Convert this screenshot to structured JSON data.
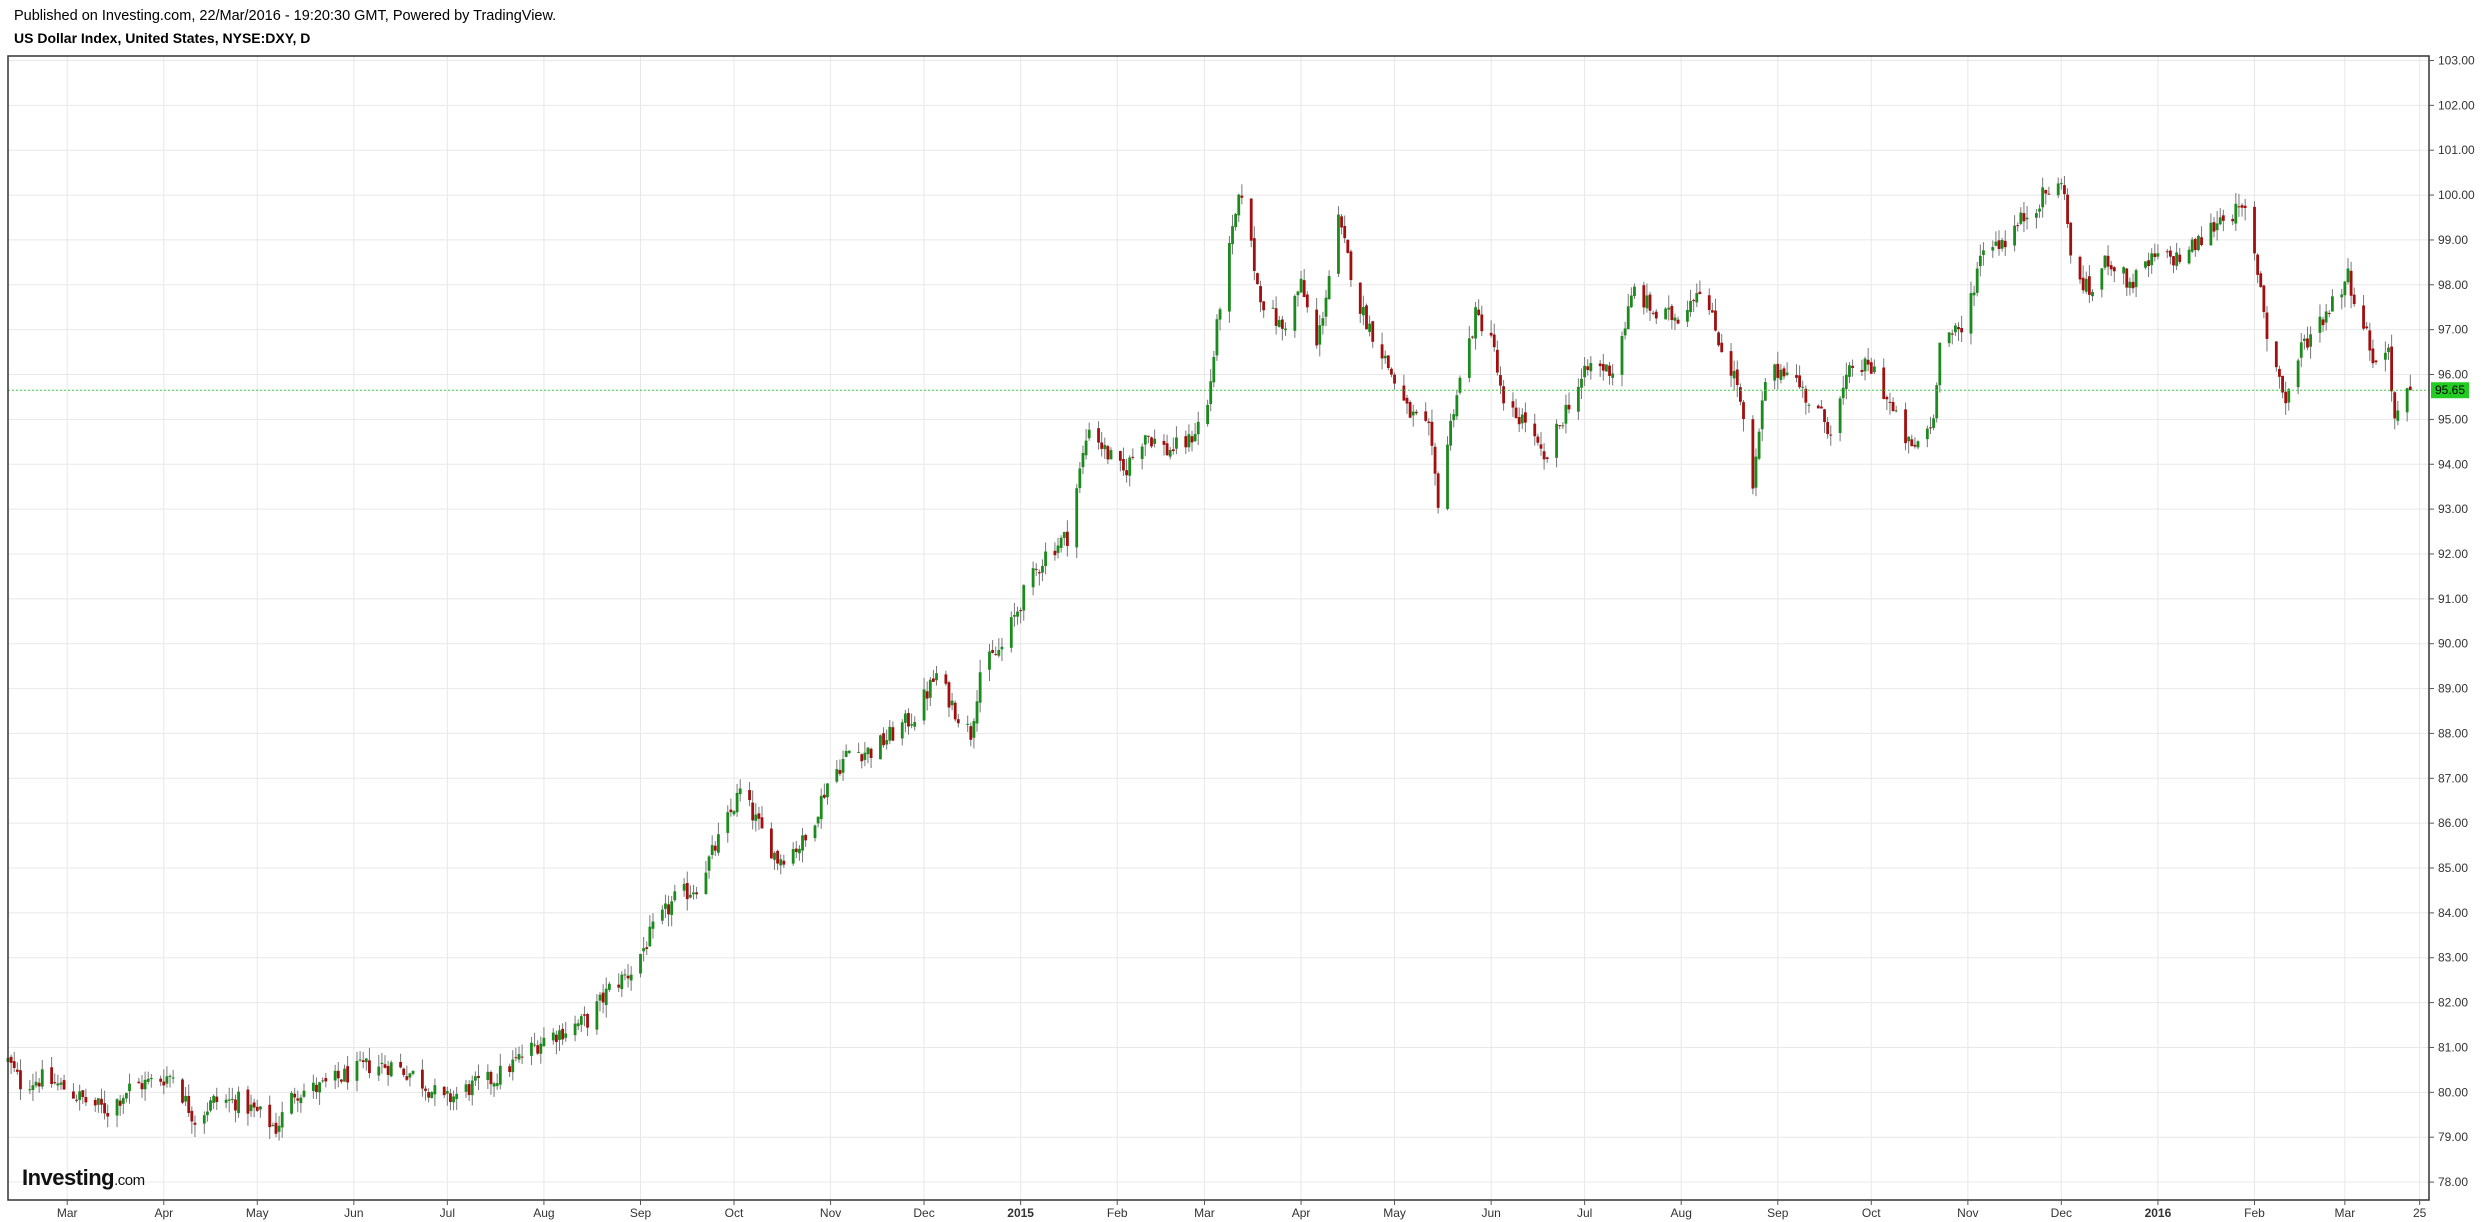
{
  "header": {
    "published": "Published on Investing.com, 22/Mar/2016 - 19:20:30 GMT, Powered by TradingView.",
    "instrument": "US Dollar Index, United States, NYSE:DXY, D"
  },
  "logo": {
    "brand": "Investing",
    "suffix": ".com"
  },
  "colors": {
    "up": "#1c8a1c",
    "down": "#a10f0f",
    "last_line": "#34d334",
    "last_tag": "#22cc22",
    "grid": "#e8e8e8"
  },
  "chart_data": {
    "type": "candlestick",
    "title": "US Dollar Index, United States, NYSE:DXY, D",
    "ylim": [
      77.6,
      103.1
    ],
    "yticks": [
      78,
      79,
      80,
      81,
      82,
      83,
      84,
      85,
      86,
      87,
      88,
      89,
      90,
      91,
      92,
      93,
      94,
      95,
      96,
      97,
      98,
      99,
      100,
      101,
      102,
      103
    ],
    "ytick_labels": [
      "78.00",
      "79.00",
      "80.00",
      "81.00",
      "82.00",
      "83.00",
      "84.00",
      "85.00",
      "86.00",
      "87.00",
      "88.00",
      "89.00",
      "90.00",
      "91.00",
      "92.00",
      "93.00",
      "94.00",
      "95.00",
      "96.00",
      "97.00",
      "98.00",
      "99.00",
      "100.00",
      "101.00",
      "102.00",
      "103.00"
    ],
    "xlim": [
      "2014-02-10",
      "2016-03-28"
    ],
    "xticks": [
      {
        "date": "2014-03-01",
        "label": "Mar"
      },
      {
        "date": "2014-04-01",
        "label": "Apr"
      },
      {
        "date": "2014-05-01",
        "label": "May"
      },
      {
        "date": "2014-06-01",
        "label": "Jun"
      },
      {
        "date": "2014-07-01",
        "label": "Jul"
      },
      {
        "date": "2014-08-01",
        "label": "Aug"
      },
      {
        "date": "2014-09-01",
        "label": "Sep"
      },
      {
        "date": "2014-10-01",
        "label": "Oct"
      },
      {
        "date": "2014-11-01",
        "label": "Nov"
      },
      {
        "date": "2014-12-01",
        "label": "Dec"
      },
      {
        "date": "2015-01-01",
        "label": "2015",
        "bold": true
      },
      {
        "date": "2015-02-01",
        "label": "Feb"
      },
      {
        "date": "2015-03-01",
        "label": "Mar"
      },
      {
        "date": "2015-04-01",
        "label": "Apr"
      },
      {
        "date": "2015-05-01",
        "label": "May"
      },
      {
        "date": "2015-06-01",
        "label": "Jun"
      },
      {
        "date": "2015-07-01",
        "label": "Jul"
      },
      {
        "date": "2015-08-01",
        "label": "Aug"
      },
      {
        "date": "2015-09-01",
        "label": "Sep"
      },
      {
        "date": "2015-10-01",
        "label": "Oct"
      },
      {
        "date": "2015-11-01",
        "label": "Nov"
      },
      {
        "date": "2015-12-01",
        "label": "Dec"
      },
      {
        "date": "2016-01-01",
        "label": "2016",
        "bold": true
      },
      {
        "date": "2016-02-01",
        "label": "Feb"
      },
      {
        "date": "2016-03-01",
        "label": "Mar"
      },
      {
        "date": "2016-03-25",
        "label": "25"
      }
    ],
    "last_price": 95.65,
    "last_price_label": "95.65",
    "closes": [
      {
        "date": "2014-02-10",
        "close": 80.7
      },
      {
        "date": "2014-02-14",
        "close": 80.2
      },
      {
        "date": "2014-02-21",
        "close": 80.3
      },
      {
        "date": "2014-02-28",
        "close": 80.1
      },
      {
        "date": "2014-03-07",
        "close": 79.8
      },
      {
        "date": "2014-03-14",
        "close": 79.6
      },
      {
        "date": "2014-03-21",
        "close": 80.1
      },
      {
        "date": "2014-03-31",
        "close": 80.3
      },
      {
        "date": "2014-04-04",
        "close": 80.4
      },
      {
        "date": "2014-04-08",
        "close": 79.8
      },
      {
        "date": "2014-04-11",
        "close": 79.4
      },
      {
        "date": "2014-04-17",
        "close": 79.8
      },
      {
        "date": "2014-04-25",
        "close": 79.8
      },
      {
        "date": "2014-05-02",
        "close": 79.5
      },
      {
        "date": "2014-05-07",
        "close": 79.2
      },
      {
        "date": "2014-05-13",
        "close": 80.0
      },
      {
        "date": "2014-05-21",
        "close": 80.1
      },
      {
        "date": "2014-05-30",
        "close": 80.4
      },
      {
        "date": "2014-06-06",
        "close": 80.6
      },
      {
        "date": "2014-06-13",
        "close": 80.6
      },
      {
        "date": "2014-06-20",
        "close": 80.4
      },
      {
        "date": "2014-06-30",
        "close": 79.8
      },
      {
        "date": "2014-07-08",
        "close": 80.1
      },
      {
        "date": "2014-07-16",
        "close": 80.3
      },
      {
        "date": "2014-07-25",
        "close": 80.8
      },
      {
        "date": "2014-08-01",
        "close": 81.2
      },
      {
        "date": "2014-08-08",
        "close": 81.4
      },
      {
        "date": "2014-08-15",
        "close": 81.6
      },
      {
        "date": "2014-08-22",
        "close": 82.3
      },
      {
        "date": "2014-08-29",
        "close": 82.7
      },
      {
        "date": "2014-09-05",
        "close": 83.6
      },
      {
        "date": "2014-09-12",
        "close": 84.3
      },
      {
        "date": "2014-09-19",
        "close": 84.6
      },
      {
        "date": "2014-09-26",
        "close": 85.6
      },
      {
        "date": "2014-10-03",
        "close": 86.7
      },
      {
        "date": "2014-10-10",
        "close": 85.8
      },
      {
        "date": "2014-10-15",
        "close": 85.2
      },
      {
        "date": "2014-10-24",
        "close": 85.6
      },
      {
        "date": "2014-10-31",
        "close": 86.9
      },
      {
        "date": "2014-11-07",
        "close": 87.6
      },
      {
        "date": "2014-11-14",
        "close": 87.6
      },
      {
        "date": "2014-11-21",
        "close": 88.0
      },
      {
        "date": "2014-11-28",
        "close": 88.4
      },
      {
        "date": "2014-12-05",
        "close": 89.3
      },
      {
        "date": "2014-12-12",
        "close": 88.4
      },
      {
        "date": "2014-12-16",
        "close": 88.0
      },
      {
        "date": "2014-12-19",
        "close": 89.4
      },
      {
        "date": "2014-12-26",
        "close": 89.9
      },
      {
        "date": "2015-01-02",
        "close": 91.1
      },
      {
        "date": "2015-01-09",
        "close": 92.0
      },
      {
        "date": "2015-01-16",
        "close": 92.4
      },
      {
        "date": "2015-01-23",
        "close": 94.9
      },
      {
        "date": "2015-01-28",
        "close": 94.3
      },
      {
        "date": "2015-02-03",
        "close": 93.8
      },
      {
        "date": "2015-02-10",
        "close": 94.7
      },
      {
        "date": "2015-02-17",
        "close": 94.3
      },
      {
        "date": "2015-02-24",
        "close": 94.5
      },
      {
        "date": "2015-03-02",
        "close": 95.3
      },
      {
        "date": "2015-03-06",
        "close": 97.6
      },
      {
        "date": "2015-03-11",
        "close": 99.5
      },
      {
        "date": "2015-03-13",
        "close": 100.1
      },
      {
        "date": "2015-03-18",
        "close": 98.0
      },
      {
        "date": "2015-03-20",
        "close": 97.6
      },
      {
        "date": "2015-03-26",
        "close": 97.0
      },
      {
        "date": "2015-04-01",
        "close": 98.0
      },
      {
        "date": "2015-04-06",
        "close": 96.6
      },
      {
        "date": "2015-04-13",
        "close": 99.4
      },
      {
        "date": "2015-04-20",
        "close": 97.5
      },
      {
        "date": "2015-04-27",
        "close": 96.5
      },
      {
        "date": "2015-05-05",
        "close": 95.2
      },
      {
        "date": "2015-05-12",
        "close": 94.7
      },
      {
        "date": "2015-05-15",
        "close": 93.2
      },
      {
        "date": "2015-05-20",
        "close": 95.3
      },
      {
        "date": "2015-05-27",
        "close": 97.3
      },
      {
        "date": "2015-06-01",
        "close": 96.9
      },
      {
        "date": "2015-06-05",
        "close": 95.2
      },
      {
        "date": "2015-06-12",
        "close": 95.0
      },
      {
        "date": "2015-06-18",
        "close": 94.0
      },
      {
        "date": "2015-06-26",
        "close": 95.4
      },
      {
        "date": "2015-07-03",
        "close": 96.2
      },
      {
        "date": "2015-07-10",
        "close": 96.1
      },
      {
        "date": "2015-07-17",
        "close": 97.9
      },
      {
        "date": "2015-07-24",
        "close": 97.3
      },
      {
        "date": "2015-07-31",
        "close": 97.3
      },
      {
        "date": "2015-08-07",
        "close": 98.0
      },
      {
        "date": "2015-08-14",
        "close": 96.6
      },
      {
        "date": "2015-08-19",
        "close": 95.8
      },
      {
        "date": "2015-08-24",
        "close": 93.4
      },
      {
        "date": "2015-08-28",
        "close": 95.9
      },
      {
        "date": "2015-09-04",
        "close": 96.2
      },
      {
        "date": "2015-09-11",
        "close": 95.4
      },
      {
        "date": "2015-09-18",
        "close": 94.8
      },
      {
        "date": "2015-09-25",
        "close": 96.2
      },
      {
        "date": "2015-10-02",
        "close": 96.1
      },
      {
        "date": "2015-10-09",
        "close": 95.0
      },
      {
        "date": "2015-10-14",
        "close": 94.3
      },
      {
        "date": "2015-10-21",
        "close": 95.0
      },
      {
        "date": "2015-10-23",
        "close": 96.9
      },
      {
        "date": "2015-10-30",
        "close": 96.9
      },
      {
        "date": "2015-11-06",
        "close": 98.9
      },
      {
        "date": "2015-11-13",
        "close": 99.0
      },
      {
        "date": "2015-11-20",
        "close": 99.6
      },
      {
        "date": "2015-11-27",
        "close": 100.1
      },
      {
        "date": "2015-12-02",
        "close": 100.2
      },
      {
        "date": "2015-12-04",
        "close": 98.5
      },
      {
        "date": "2015-12-10",
        "close": 97.8
      },
      {
        "date": "2015-12-16",
        "close": 98.6
      },
      {
        "date": "2015-12-23",
        "close": 98.0
      },
      {
        "date": "2015-12-31",
        "close": 98.6
      },
      {
        "date": "2016-01-08",
        "close": 98.6
      },
      {
        "date": "2016-01-15",
        "close": 99.0
      },
      {
        "date": "2016-01-22",
        "close": 99.6
      },
      {
        "date": "2016-01-29",
        "close": 99.6
      },
      {
        "date": "2016-02-03",
        "close": 98.0
      },
      {
        "date": "2016-02-05",
        "close": 96.9
      },
      {
        "date": "2016-02-11",
        "close": 95.4
      },
      {
        "date": "2016-02-16",
        "close": 96.6
      },
      {
        "date": "2016-02-24",
        "close": 97.4
      },
      {
        "date": "2016-03-02",
        "close": 98.2
      },
      {
        "date": "2016-03-07",
        "close": 97.1
      },
      {
        "date": "2016-03-11",
        "close": 96.2
      },
      {
        "date": "2016-03-15",
        "close": 96.6
      },
      {
        "date": "2016-03-17",
        "close": 95.0
      },
      {
        "date": "2016-03-22",
        "close": 95.65
      }
    ]
  }
}
